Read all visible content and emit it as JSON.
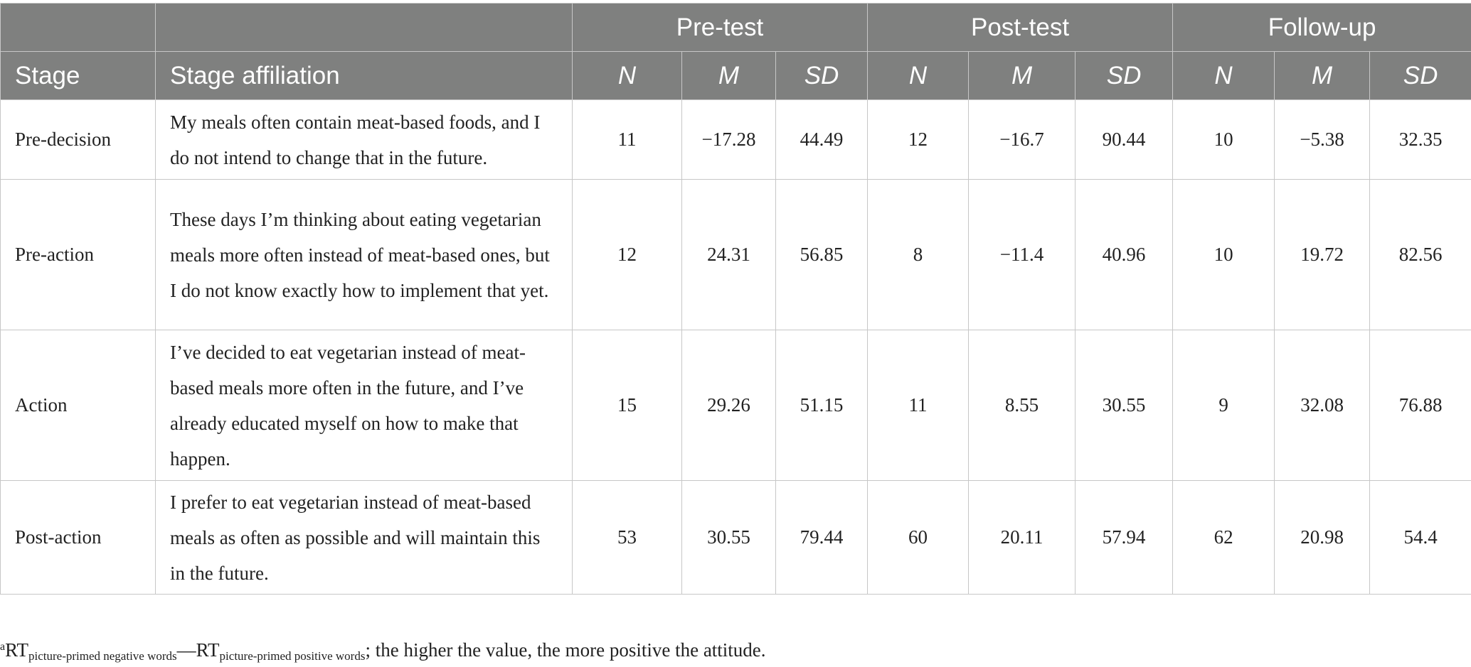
{
  "header": {
    "groups": [
      "Pre-test",
      "Post-test",
      "Follow-up"
    ],
    "stage_col": "Stage",
    "affiliation_col": "Stage affiliation",
    "sub": [
      "N",
      "M",
      "SD"
    ]
  },
  "rows": [
    {
      "stage": "Pre-decision",
      "affiliation": "My meals often contain meat-based foods, and I do not intend to change that in the future.",
      "values": [
        "11",
        "−17.28",
        "44.49",
        "12",
        "−16.7",
        "90.44",
        "10",
        "−5.38",
        "32.35"
      ]
    },
    {
      "stage": "Pre-action",
      "affiliation": "These days I’m thinking about eating vegetarian meals more often instead of meat-based ones, but I do not know exactly how to implement that yet.",
      "values": [
        "12",
        "24.31",
        "56.85",
        "8",
        "−11.4",
        "40.96",
        "10",
        "19.72",
        "82.56"
      ]
    },
    {
      "stage": "Action",
      "affiliation": "I’ve decided to eat vegetarian instead of meat-based meals more often in the future, and I’ve already educated myself on how to make that happen.",
      "values": [
        "15",
        "29.26",
        "51.15",
        "11",
        "8.55",
        "30.55",
        "9",
        "32.08",
        "76.88"
      ]
    },
    {
      "stage": "Post-action",
      "affiliation": "I prefer to eat vegetarian instead of meat-based meals as often as possible and will maintain this in the future.",
      "values": [
        "53",
        "30.55",
        "79.44",
        "60",
        "20.11",
        "57.94",
        "62",
        "20.98",
        "54.4"
      ]
    }
  ],
  "footnote": {
    "marker": "a",
    "rt1": "RT",
    "sub1": "picture-primed negative words",
    "dash": "—",
    "rt2": "RT",
    "sub2": "picture-primed positive words",
    "text": "; the higher the value, the more positive the attitude."
  }
}
